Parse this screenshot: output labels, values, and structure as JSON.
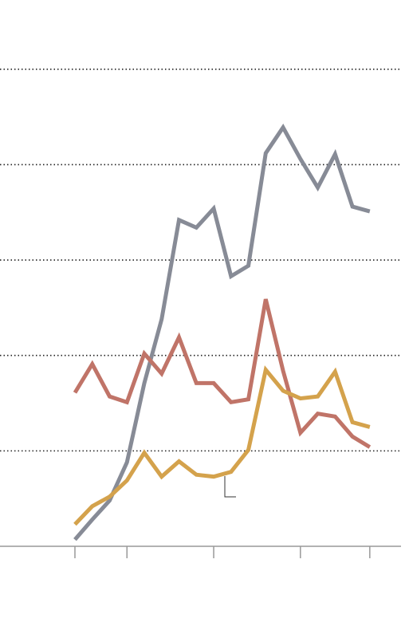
{
  "chart_data": {
    "type": "line",
    "x": [
      0,
      1,
      2,
      3,
      4,
      5,
      6,
      7,
      8,
      9,
      10,
      11,
      12,
      13,
      14,
      15,
      16,
      17
    ],
    "xlim": [
      -4.32,
      18.8
    ],
    "xticks": [
      0,
      3,
      8,
      13,
      17
    ],
    "ylim": [
      0,
      5.5
    ],
    "yticks": [
      1,
      2,
      3,
      4,
      5
    ],
    "grid": true,
    "series": [
      {
        "color": "#878b96",
        "values": [
          0.07,
          0.28,
          0.48,
          0.88,
          1.71,
          2.38,
          3.42,
          3.34,
          3.54,
          2.83,
          2.94,
          4.12,
          4.39,
          4.06,
          3.76,
          4.11,
          3.56,
          3.51
        ]
      },
      {
        "color": "#c07468",
        "values": [
          1.61,
          1.91,
          1.57,
          1.51,
          2.02,
          1.81,
          2.19,
          1.71,
          1.71,
          1.51,
          1.54,
          2.59,
          1.84,
          1.19,
          1.39,
          1.36,
          1.15,
          1.04
        ]
      },
      {
        "color": "#d4a24c",
        "values": [
          0.23,
          0.42,
          0.52,
          0.69,
          0.98,
          0.73,
          0.89,
          0.75,
          0.73,
          0.78,
          1.01,
          1.85,
          1.63,
          1.55,
          1.57,
          1.83,
          1.3,
          1.25
        ]
      }
    ]
  }
}
